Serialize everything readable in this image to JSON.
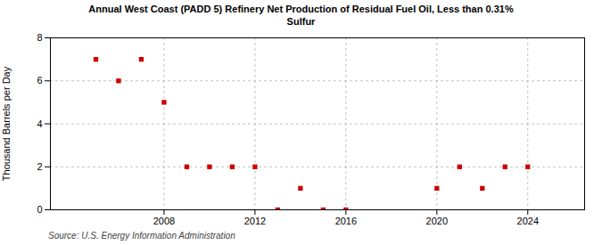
{
  "chart_data": {
    "type": "scatter",
    "title": "Annual West Coast (PADD 5) Refinery Net Production of Residual Fuel Oil, Less than 0.31%\nSulfur",
    "ylabel": "Thousand Barrels per Day",
    "annotations": [
      "Source: U.S. Energy Information Administration"
    ],
    "x": [
      2005,
      2006,
      2007,
      2008,
      2009,
      2010,
      2011,
      2012,
      2013,
      2014,
      2015,
      2016,
      2020,
      2021,
      2022,
      2023,
      2024
    ],
    "values": [
      7,
      6,
      7,
      5,
      2,
      2,
      2,
      2,
      0,
      1,
      0,
      0,
      1,
      2,
      1,
      2,
      2
    ],
    "color": "#cc0000",
    "marker": "square",
    "xlim": [
      2003,
      2026.5
    ],
    "xticks": [
      2008,
      2012,
      2016,
      2020,
      2024
    ],
    "ylim": [
      0,
      8
    ],
    "yticks": [
      0,
      2,
      4,
      6,
      8
    ],
    "grid": true
  }
}
